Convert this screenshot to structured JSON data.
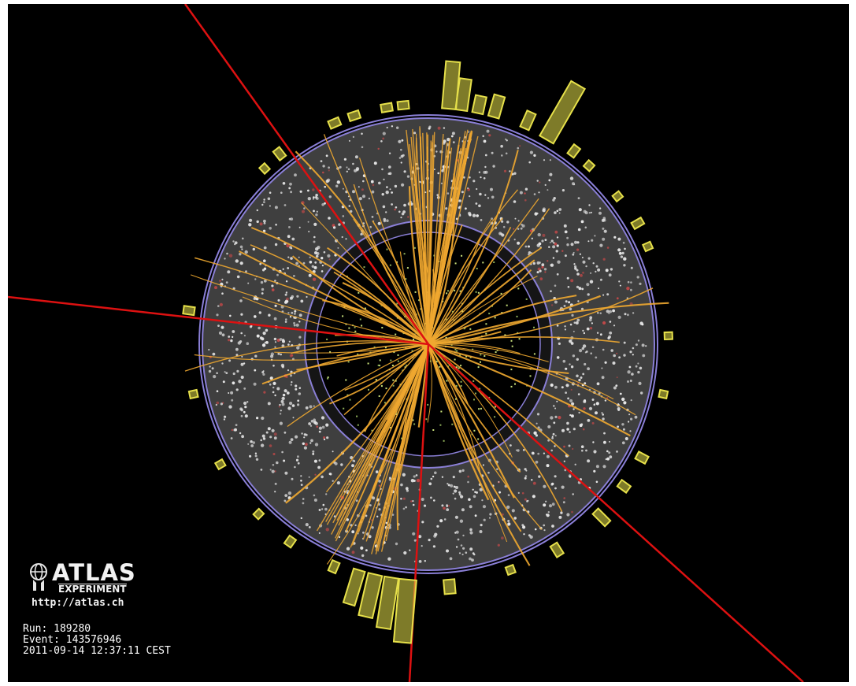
{
  "logo": {
    "wordmark": "ATLAS",
    "subtitle": "EXPERIMENT",
    "url": "http://atlas.ch"
  },
  "event": {
    "run": "Run: 189280",
    "event_number": "Event: 143576946",
    "datetime": "2011-09-14 12:37:11 CEST"
  },
  "colors": {
    "background": "#000000",
    "detector_fill": "#3f3f3f",
    "inner_detector_fill": "#000000",
    "boundary": "#8a7fd6",
    "track": "#f0a830",
    "muon_line": "#dd1111",
    "calorimeter_block": "#e6e04a",
    "hit": "#e8e8e8"
  },
  "icons": {
    "logo": "atlas-globe-icon"
  }
}
